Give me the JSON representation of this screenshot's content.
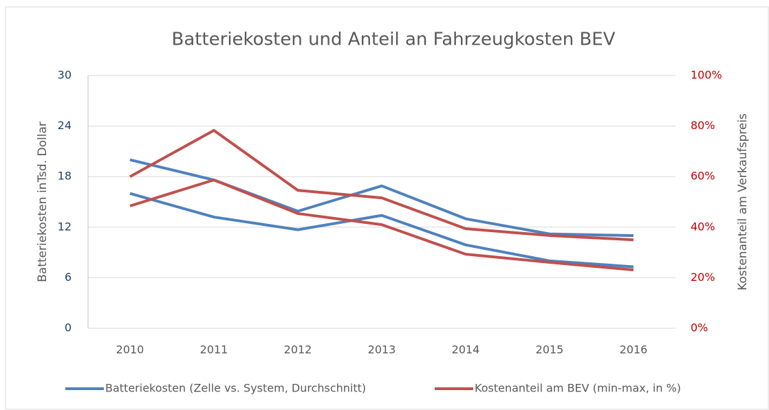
{
  "chart_data": {
    "type": "line",
    "title": "Batteriekosten und Anteil an Fahrzeugkosten  BEV",
    "y_label": "Batteriekosten inTsd.  Dollar",
    "y2_label": "Kostenanteil am Verkaufspreis",
    "categories": [
      "2010",
      "2011",
      "2012",
      "2013",
      "2014",
      "2015",
      "2016"
    ],
    "ylim": [
      0,
      30
    ],
    "yticks": [
      0,
      6,
      12,
      18,
      24,
      30
    ],
    "y2lim": [
      0,
      100
    ],
    "y2ticks": [
      {
        "value": 0,
        "label": "0%"
      },
      {
        "value": 20,
        "label": "20%"
      },
      {
        "value": 40,
        "label": "40%"
      },
      {
        "value": 60,
        "label": "60%"
      },
      {
        "value": 80,
        "label": "80%"
      },
      {
        "value": 100,
        "label": "100%"
      }
    ],
    "grid": true,
    "legend": "bottom",
    "y_tick_color": "#1f3f6f",
    "y2_tick_color": "#c00000",
    "series": [
      {
        "name": "Batteriekosten (Zelle vs. System, Durchschnitt)",
        "color": "#4f81bd",
        "axis": "y",
        "max": [
          20,
          17.6,
          13.9,
          16.9,
          13,
          11.2,
          11
        ],
        "min": [
          16,
          13.2,
          11.7,
          13.4,
          9.9,
          8,
          7.3
        ]
      },
      {
        "name": "Kostenanteil am BEV (min-max, in %)",
        "color": "#c0504d",
        "axis": "y2",
        "max": [
          60,
          78.3,
          54.6,
          51.6,
          39.4,
          36.7,
          35
        ],
        "min": [
          48.4,
          58.7,
          45.4,
          41,
          29.3,
          26.1,
          23.1
        ]
      }
    ]
  }
}
